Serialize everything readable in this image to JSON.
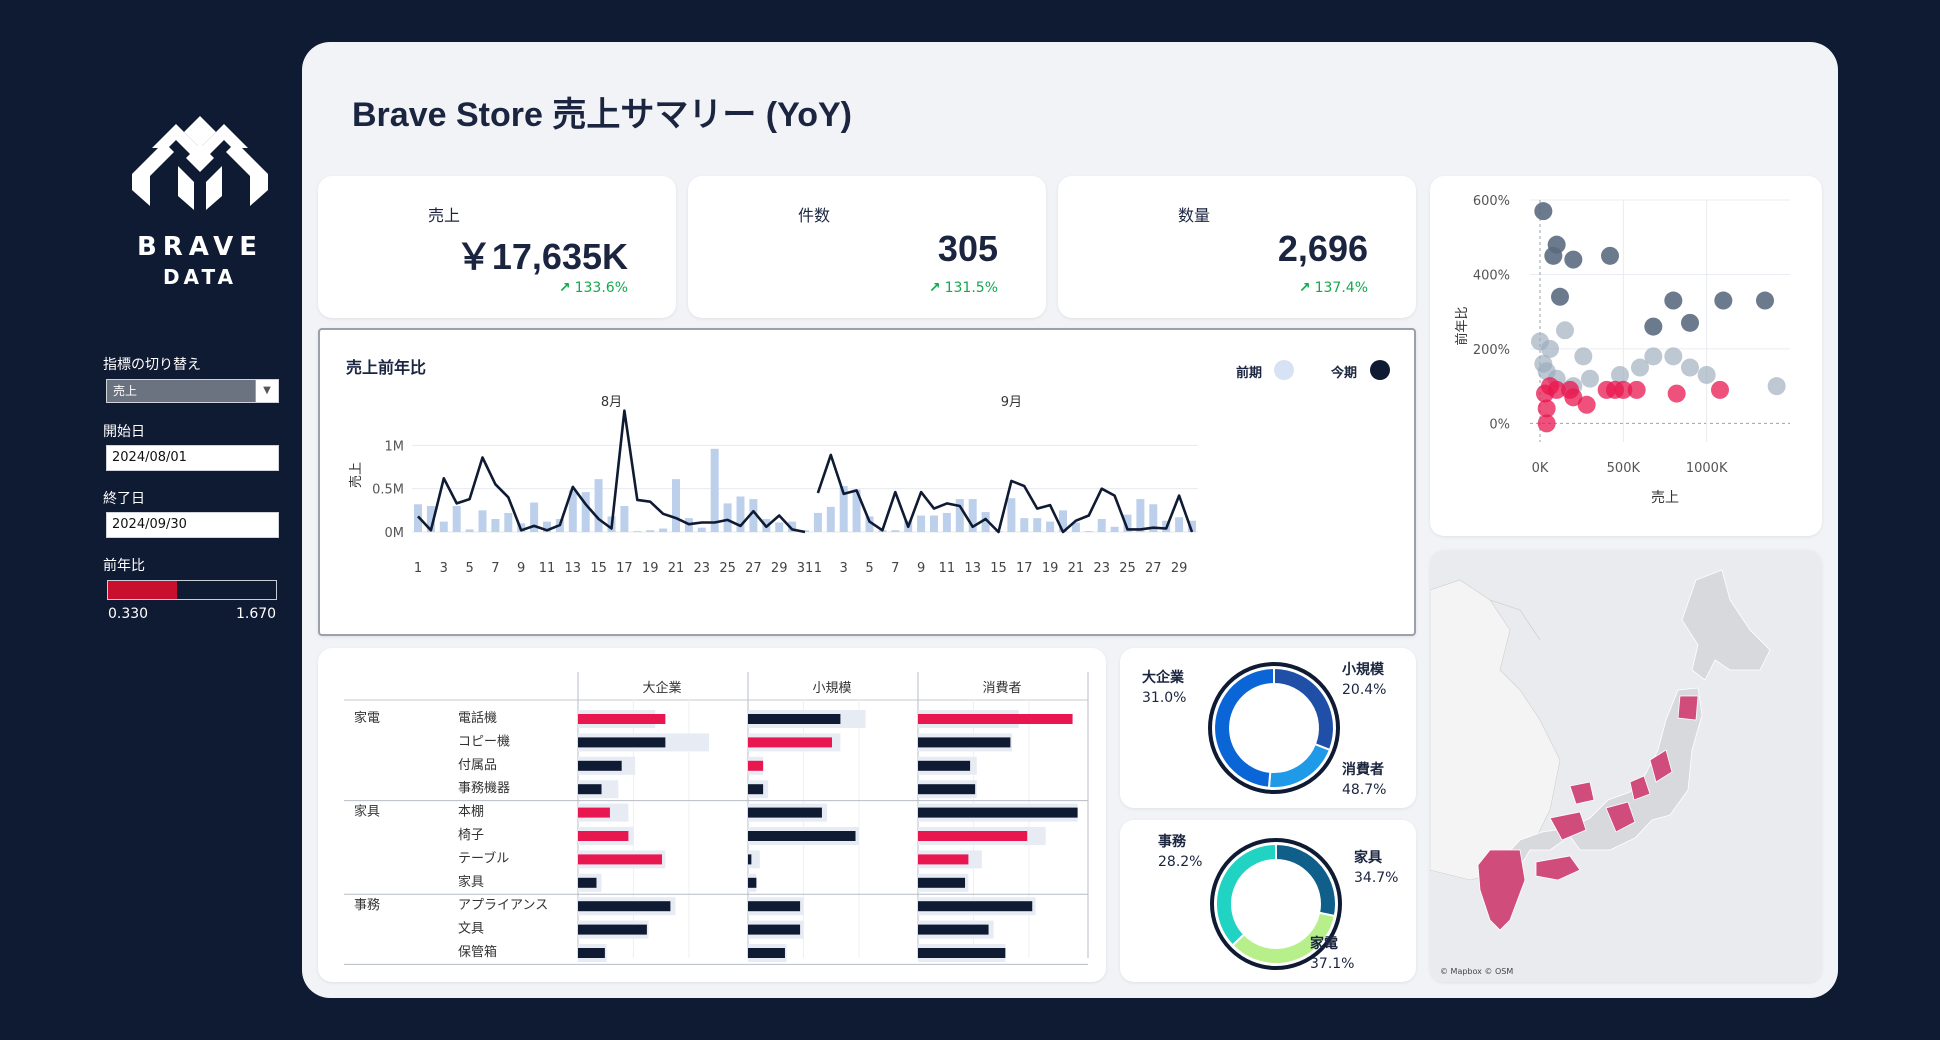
{
  "sidebar": {
    "logo": {
      "line1": "BRAVE",
      "line2": "DATA"
    },
    "metric_switch": {
      "label": "指標の切り替え",
      "value": "売上"
    },
    "start_date": {
      "label": "開始日",
      "value": "2024/08/01"
    },
    "end_date": {
      "label": "終了日",
      "value": "2024/09/30"
    },
    "yoy": {
      "label": "前年比",
      "min": "0.330",
      "max": "1.670",
      "selected_fraction": 0.41
    }
  },
  "header": {
    "title": "Brave Store  売上サマリー (YoY)"
  },
  "kpis": [
    {
      "label": "売上",
      "value": "￥17,635K",
      "delta": "133.6%"
    },
    {
      "label": "件数",
      "value": "305",
      "delta": "131.5%"
    },
    {
      "label": "数量",
      "value": "2,696",
      "delta": "137.4%"
    }
  ],
  "colors": {
    "current": "#0f1a33",
    "previous": "#bcd0ec",
    "accent": "#e8174f",
    "positive": "#15a84e",
    "scatter_grey": "#5b6b7f",
    "scatter_light": "#9aaabb",
    "map_pink": "#d04c7a"
  },
  "trend": {
    "title": "売上前年比",
    "legend": {
      "prev": "前期",
      "curr": "今期"
    },
    "months": [
      "8月",
      "9月"
    ],
    "ylabel": "売上",
    "yticks": [
      "1M",
      "0.5M",
      "0M"
    ],
    "xticks_aug": [
      "1",
      "3",
      "5",
      "7",
      "9",
      "11",
      "13",
      "15",
      "17",
      "19",
      "21",
      "23",
      "25",
      "27",
      "29",
      "31"
    ],
    "xticks_sep": [
      "1",
      "3",
      "5",
      "7",
      "9",
      "11",
      "13",
      "15",
      "17",
      "19",
      "21",
      "23",
      "25",
      "27",
      "29"
    ]
  },
  "scatter": {
    "ylabel": "前年比",
    "xlabel": "売上",
    "yticks": [
      "600%",
      "400%",
      "200%",
      "0%"
    ],
    "xticks": [
      "0K",
      "500K",
      "1000K"
    ]
  },
  "matrix": {
    "columns": [
      "大企業",
      "小規模",
      "消費者"
    ],
    "groups": [
      {
        "name": "家電",
        "items": [
          "電話機",
          "コピー機",
          "付属品",
          "事務機器"
        ]
      },
      {
        "name": "家具",
        "items": [
          "本棚",
          "椅子",
          "テーブル",
          "家具"
        ]
      },
      {
        "name": "事務",
        "items": [
          "アプライアンス",
          "文具",
          "保管箱"
        ]
      }
    ]
  },
  "donut_segment": [
    {
      "name": "大企業",
      "pct": "31.0%"
    },
    {
      "name": "小規模",
      "pct": "20.4%"
    },
    {
      "name": "消費者",
      "pct": "48.7%"
    }
  ],
  "donut_category": [
    {
      "name": "事務",
      "pct": "28.2%"
    },
    {
      "name": "家具",
      "pct": "34.7%"
    },
    {
      "name": "家電",
      "pct": "37.1%"
    }
  ],
  "map": {
    "credit": "© Mapbox © OSM"
  },
  "chart_data": [
    {
      "type": "line",
      "title": "売上前年比",
      "ylabel": "売上",
      "ylim": [
        0,
        1500000
      ],
      "x": [
        "8/1",
        "8/2",
        "8/3",
        "8/4",
        "8/5",
        "8/6",
        "8/7",
        "8/8",
        "8/9",
        "8/10",
        "8/11",
        "8/12",
        "8/13",
        "8/14",
        "8/15",
        "8/16",
        "8/17",
        "8/18",
        "8/19",
        "8/20",
        "8/21",
        "8/22",
        "8/23",
        "8/24",
        "8/25",
        "8/26",
        "8/27",
        "8/28",
        "8/29",
        "8/30",
        "8/31",
        "9/1",
        "9/2",
        "9/3",
        "9/4",
        "9/5",
        "9/6",
        "9/7",
        "9/8",
        "9/9",
        "9/10",
        "9/11",
        "9/12",
        "9/13",
        "9/14",
        "9/15",
        "9/16",
        "9/17",
        "9/18",
        "9/19",
        "9/20",
        "9/21",
        "9/22",
        "9/23",
        "9/24",
        "9/25",
        "9/26",
        "9/27",
        "9/28",
        "9/29",
        "9/30"
      ],
      "series": [
        {
          "name": "今期",
          "values": [
            180000,
            20000,
            620000,
            330000,
            380000,
            860000,
            550000,
            400000,
            20000,
            70000,
            20000,
            80000,
            520000,
            320000,
            150000,
            40000,
            1400000,
            370000,
            350000,
            210000,
            160000,
            90000,
            110000,
            110000,
            140000,
            70000,
            240000,
            60000,
            190000,
            30000,
            0,
            450000,
            890000,
            440000,
            480000,
            120000,
            20000,
            460000,
            60000,
            460000,
            270000,
            330000,
            300000,
            60000,
            150000,
            0,
            590000,
            530000,
            270000,
            310000,
            0,
            130000,
            190000,
            500000,
            420000,
            30000,
            30000,
            50000,
            40000,
            420000,
            0
          ],
          "style": "line"
        },
        {
          "name": "前期",
          "values": [
            320000,
            300000,
            120000,
            300000,
            30000,
            250000,
            150000,
            220000,
            100000,
            340000,
            120000,
            150000,
            480000,
            460000,
            610000,
            180000,
            300000,
            10000,
            20000,
            40000,
            610000,
            160000,
            50000,
            960000,
            330000,
            410000,
            380000,
            150000,
            110000,
            120000,
            20000,
            220000,
            290000,
            530000,
            490000,
            180000,
            20000,
            20000,
            130000,
            190000,
            190000,
            220000,
            380000,
            380000,
            230000,
            10000,
            390000,
            160000,
            160000,
            120000,
            250000,
            110000,
            10000,
            150000,
            60000,
            200000,
            380000,
            320000,
            130000,
            170000,
            130000
          ],
          "style": "bar"
        }
      ]
    },
    {
      "type": "scatter",
      "xlabel": "売上",
      "ylabel": "前年比",
      "xlim": [
        0,
        1500000
      ],
      "ylim": [
        -0.5,
        6.0
      ],
      "series": [
        {
          "name": "high",
          "points": [
            [
              20000,
              5.7
            ],
            [
              200000,
              4.4
            ],
            [
              100000,
              4.8
            ],
            [
              80000,
              4.5
            ],
            [
              420000,
              4.5
            ],
            [
              120000,
              3.4
            ],
            [
              1100000,
              3.3
            ],
            [
              1350000,
              3.3
            ],
            [
              800000,
              3.3
            ],
            [
              900000,
              2.7
            ],
            [
              680000,
              2.6
            ]
          ]
        },
        {
          "name": "mid",
          "points": [
            [
              0,
              2.2
            ],
            [
              60000,
              2.0
            ],
            [
              150000,
              2.5
            ],
            [
              260000,
              1.8
            ],
            [
              680000,
              1.8
            ],
            [
              800000,
              1.8
            ],
            [
              480000,
              1.3
            ],
            [
              600000,
              1.5
            ],
            [
              1000000,
              1.3
            ],
            [
              1420000,
              1.0
            ],
            [
              900000,
              1.5
            ],
            [
              20000,
              1.6
            ],
            [
              40000,
              1.4
            ],
            [
              100000,
              1.2
            ],
            [
              200000,
              1.0
            ],
            [
              300000,
              1.2
            ]
          ]
        },
        {
          "name": "low",
          "points": [
            [
              30000,
              0.8
            ],
            [
              40000,
              0.0
            ],
            [
              40000,
              0.4
            ],
            [
              100000,
              0.9
            ],
            [
              180000,
              0.9
            ],
            [
              280000,
              0.5
            ],
            [
              400000,
              0.9
            ],
            [
              450000,
              0.9
            ],
            [
              500000,
              0.9
            ],
            [
              580000,
              0.9
            ],
            [
              820000,
              0.8
            ],
            [
              1080000,
              0.9
            ],
            [
              60000,
              1.0
            ],
            [
              200000,
              0.7
            ]
          ]
        }
      ]
    },
    {
      "type": "bar",
      "title": "",
      "categories": [
        "電話機",
        "コピー機",
        "付属品",
        "事務機器",
        "本棚",
        "椅子",
        "テーブル",
        "家具",
        "アプライアンス",
        "文具",
        "保管箱"
      ],
      "series": [
        {
          "name": "大企業_今期",
          "values": [
            0.52,
            0.52,
            0.26,
            0.14,
            0.19,
            0.3,
            0.5,
            0.11,
            0.55,
            0.41,
            0.16
          ]
        },
        {
          "name": "大企業_前期",
          "values": [
            0.46,
            0.78,
            0.34,
            0.24,
            0.3,
            0.33,
            0.52,
            0.14,
            0.58,
            0.42,
            0.17
          ]
        },
        {
          "name": "小規模_今期",
          "values": [
            0.55,
            0.5,
            0.09,
            0.09,
            0.44,
            0.64,
            0.02,
            0.05,
            0.31,
            0.31,
            0.22
          ]
        },
        {
          "name": "小規模_前期",
          "values": [
            0.7,
            0.55,
            0.09,
            0.12,
            0.47,
            0.66,
            0.07,
            0.05,
            0.33,
            0.33,
            0.23
          ]
        },
        {
          "name": "消費者_今期",
          "values": [
            0.92,
            0.55,
            0.31,
            0.34,
            0.95,
            0.65,
            0.3,
            0.28,
            0.68,
            0.42,
            0.52
          ]
        },
        {
          "name": "消費者_前期",
          "values": [
            0.6,
            0.56,
            0.35,
            0.35,
            0.95,
            0.76,
            0.38,
            0.3,
            0.7,
            0.45,
            0.52
          ]
        }
      ],
      "highlight_red": [
        [
          0,
          1
        ],
        [
          1,
          2
        ],
        [
          2,
          2
        ],
        [
          4,
          1
        ],
        [
          5,
          1
        ],
        [
          6,
          1
        ],
        [
          0,
          3
        ],
        [
          5,
          3
        ],
        [
          6,
          3
        ]
      ]
    },
    {
      "type": "pie",
      "labels": [
        "大企業",
        "小規模",
        "消費者"
      ],
      "values": [
        31.0,
        20.4,
        48.7
      ]
    },
    {
      "type": "pie",
      "labels": [
        "事務",
        "家具",
        "家電"
      ],
      "values": [
        28.2,
        34.7,
        37.1
      ]
    }
  ]
}
